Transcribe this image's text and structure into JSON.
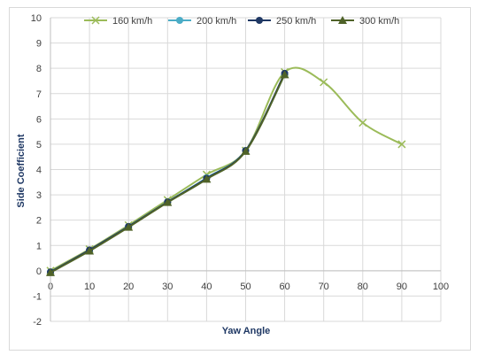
{
  "chart_data": {
    "type": "line",
    "xlabel": "Yaw Angle",
    "ylabel": "Side Coefficient",
    "xlim": [
      0,
      100
    ],
    "ylim": [
      -2,
      10
    ],
    "xticks": [
      0,
      10,
      20,
      30,
      40,
      50,
      60,
      70,
      80,
      90,
      100
    ],
    "yticks": [
      -2,
      -1,
      0,
      1,
      2,
      3,
      4,
      5,
      6,
      7,
      8,
      9,
      10
    ],
    "grid": true,
    "legend_position": "top",
    "series": [
      {
        "name": "160 km/h",
        "color": "#9bbb59",
        "marker": "x",
        "x": [
          0,
          10,
          20,
          30,
          40,
          50,
          60,
          70,
          80,
          90
        ],
        "y": [
          0.0,
          0.85,
          1.8,
          2.8,
          3.8,
          4.75,
          7.85,
          7.45,
          5.85,
          5.0
        ]
      },
      {
        "name": "200 km/h",
        "color": "#4bacc6",
        "marker": "circle",
        "x": [
          0,
          10,
          20,
          30,
          40,
          50,
          60
        ],
        "y": [
          -0.05,
          0.8,
          1.75,
          2.72,
          3.67,
          4.75,
          7.75
        ]
      },
      {
        "name": "250 km/h",
        "color": "#1f3864",
        "marker": "circle",
        "x": [
          0,
          10,
          20,
          30,
          40,
          50,
          60
        ],
        "y": [
          -0.05,
          0.82,
          1.75,
          2.72,
          3.65,
          4.75,
          7.8
        ]
      },
      {
        "name": "300 km/h",
        "color": "#4f6228",
        "marker": "triangle",
        "x": [
          0,
          10,
          20,
          30,
          40,
          50,
          60
        ],
        "y": [
          -0.07,
          0.78,
          1.72,
          2.7,
          3.62,
          4.72,
          7.75
        ]
      }
    ]
  }
}
